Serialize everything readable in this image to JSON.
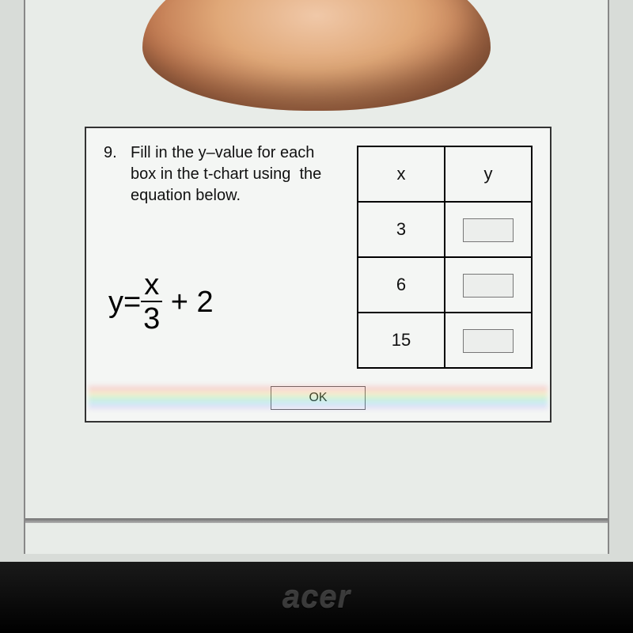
{
  "question": {
    "number": "9.",
    "text": "Fill in the y–value for each box in the t-chart using  the equation below."
  },
  "equation": {
    "lhs": "y=",
    "frac_num": "x",
    "frac_den": "3",
    "rhs": " + 2"
  },
  "table": {
    "headers": {
      "x": "x",
      "y": "y"
    },
    "rows": [
      {
        "x": "3",
        "y": ""
      },
      {
        "x": "6",
        "y": ""
      },
      {
        "x": "15",
        "y": ""
      }
    ]
  },
  "ok_label": "OK",
  "brand": "acer",
  "colors": {
    "body_bg": "#d8dcd8",
    "screen_bg": "#e8ece8",
    "dialog_bg": "#f4f6f4",
    "dialog_border": "#333333",
    "table_border": "#000000",
    "input_bg": "#eceeec",
    "input_border": "#777777",
    "btn_bg": "#f6f7f6",
    "btn_border": "#666666",
    "bezel": "#000000"
  }
}
